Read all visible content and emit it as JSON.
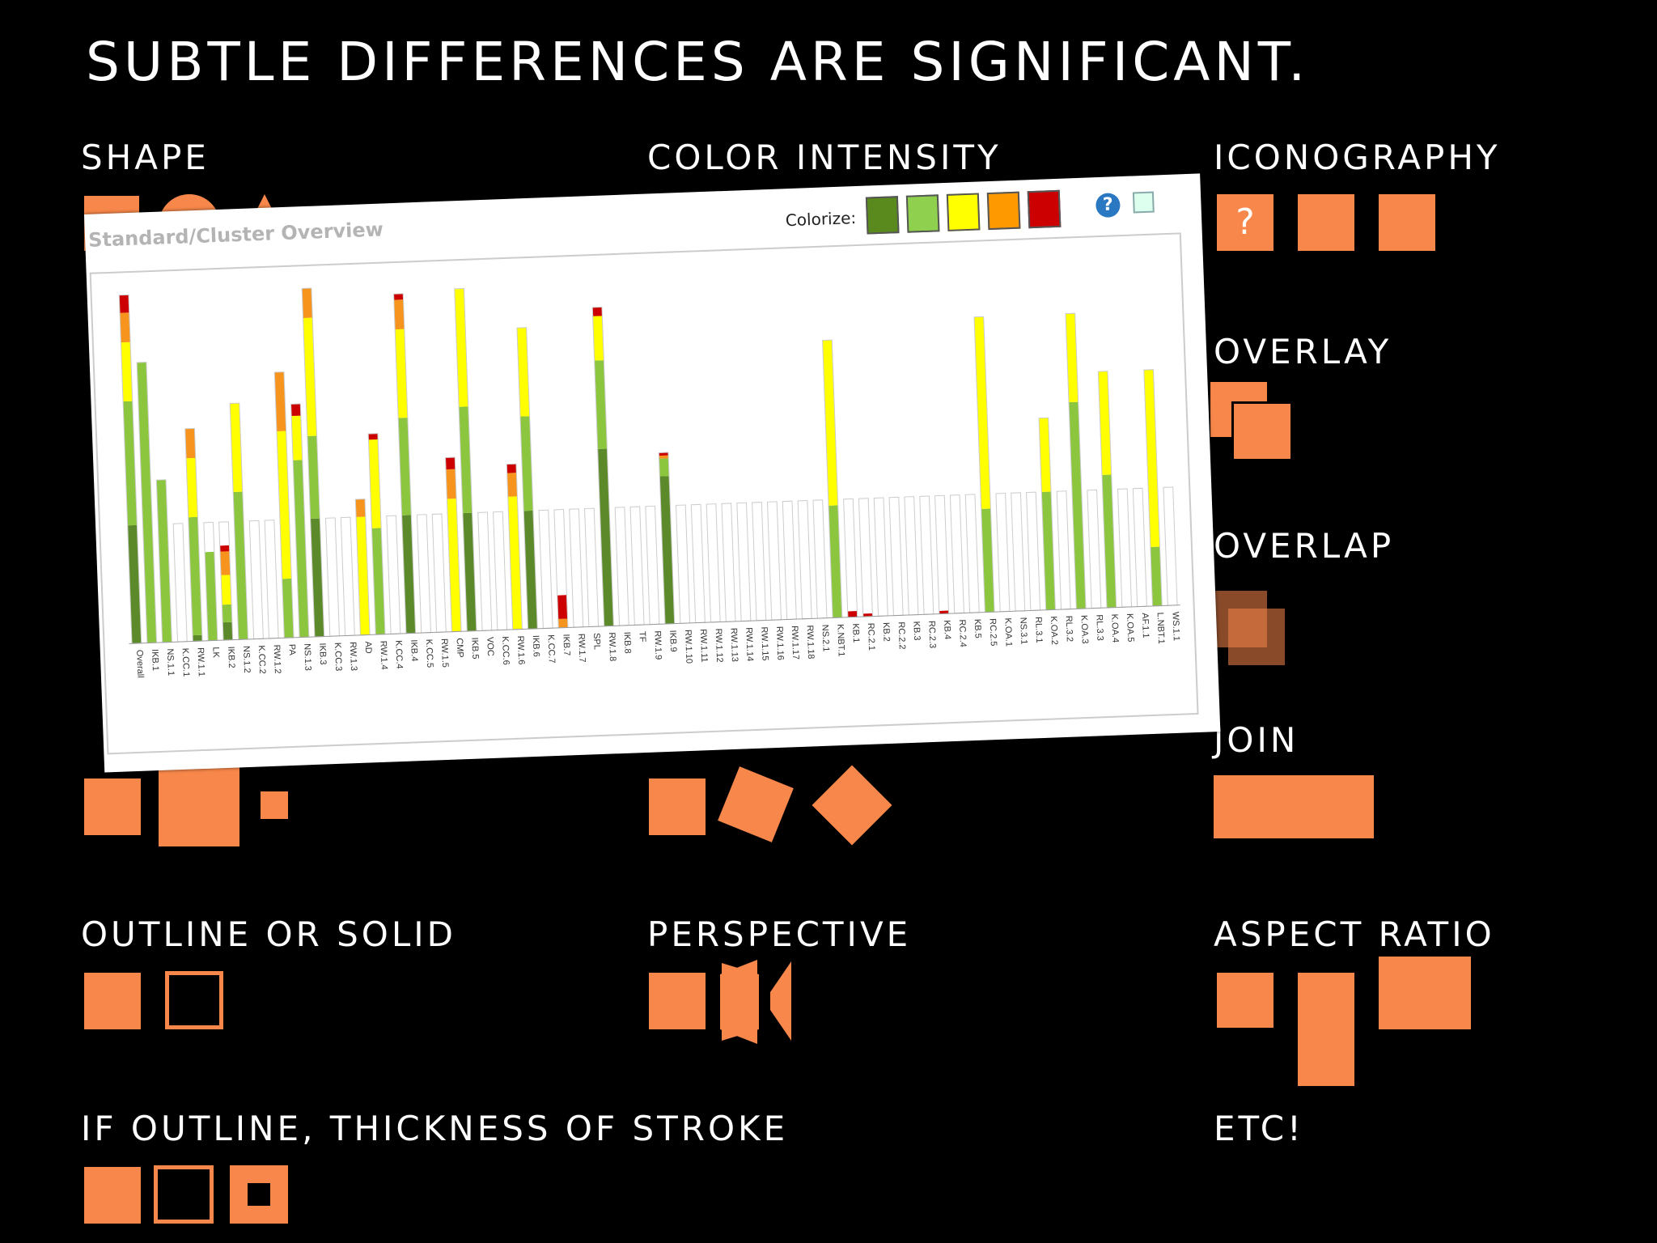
{
  "slide": {
    "title": "SUBTLE DIFFERENCES ARE SIGNIFICANT.",
    "accent_color": "#f7874a",
    "labels": {
      "shape": "SHAPE",
      "color_intensity": "COLOR INTENSITY",
      "iconography": "ICONOGRAPHY",
      "overlay": "OVERLAY",
      "overlap": "OVERLAP",
      "join": "JOIN",
      "outline_or_solid": "OUTLINE OR SOLID",
      "perspective": "PERSPECTIVE",
      "aspect_ratio": "ASPECT RATIO",
      "stroke_thickness": "IF OUTLINE, THICKNESS OF STROKE",
      "etc": "ETC!"
    },
    "iconography_glyph": "?"
  },
  "screenshot": {
    "title": "Standard/Cluster Overview",
    "colorize_label": "Colorize:",
    "colorize_swatches": [
      "#5a8a1e",
      "#8fd14f",
      "#ffff00",
      "#ff9900",
      "#cc0000"
    ],
    "help_icon": "?",
    "chart_data": {
      "type": "bar",
      "stacked": true,
      "colors": {
        "dark_green": "#5c8a2a",
        "green": "#8cc63f",
        "yellow": "#ffff00",
        "orange": "#f7941d",
        "red": "#cc0000"
      },
      "categories": [
        "Overall",
        "IKB.1",
        "NS.1.1",
        "K.CC.1",
        "RW.1.1",
        "LK",
        "IKB.2",
        "NS.1.2",
        "K.CC.2",
        "RW.1.2",
        "PA",
        "NS.1.3",
        "IKB.3",
        "K.CC.3",
        "RW.1.3",
        "AD",
        "RW.1.4",
        "K.CC.4",
        "IKB.4",
        "K.CC.5",
        "RW.1.5",
        "CMP",
        "IKB.5",
        "VOC",
        "K.CC.6",
        "RW.1.6",
        "IKB.6",
        "K.CC.7",
        "IKB.7",
        "RW.1.7",
        "SPL",
        "RW.1.8",
        "IKB.8",
        "TF",
        "RW.1.9",
        "IKB.9",
        "RW.1.10",
        "RW.1.11",
        "RW.1.12",
        "RW.1.13",
        "RW.1.14",
        "RW.1.15",
        "RW.1.16",
        "RW.1.17",
        "RW.1.18",
        "NS.2.1",
        "K.NBT.1",
        "KB.1",
        "RC.2.1",
        "KB.2",
        "RC.2.2",
        "KB.3",
        "RC.2.3",
        "KB.4",
        "RC.2.4",
        "KB.5",
        "RC.2.5",
        "K.OA.1",
        "NS.3.1",
        "RL.3.1",
        "K.OA.2",
        "RL.3.2",
        "K.OA.3",
        "RL.3.3",
        "K.OA.4",
        "K.OA.5",
        "AF.1.1",
        "L.NBT.1",
        "WS.1.1"
      ],
      "series": [
        {
          "values": [
            40,
            0,
            0,
            0,
            2,
            0,
            6,
            0,
            0,
            0,
            0,
            0,
            40,
            0,
            0,
            0,
            0,
            0,
            40,
            0,
            0,
            0,
            40,
            0,
            0,
            0,
            40,
            0,
            0,
            0,
            0,
            60,
            0,
            0,
            0,
            50,
            0,
            0,
            0,
            0,
            0,
            0,
            0,
            0,
            0,
            0,
            0,
            0,
            0,
            0,
            0,
            0,
            0,
            0,
            0,
            0,
            0,
            0,
            0,
            0,
            0,
            0,
            0,
            0,
            0,
            0,
            0,
            0,
            0
          ]
        },
        {
          "values": [
            42,
            95,
            55,
            0,
            40,
            30,
            6,
            50,
            0,
            0,
            20,
            60,
            28,
            0,
            0,
            0,
            36,
            0,
            33,
            0,
            0,
            0,
            36,
            0,
            0,
            0,
            32,
            0,
            0,
            0,
            0,
            30,
            0,
            0,
            0,
            6,
            0,
            0,
            0,
            0,
            0,
            0,
            0,
            0,
            0,
            0,
            38,
            0,
            0,
            0,
            0,
            0,
            0,
            0,
            0,
            0,
            35,
            0,
            0,
            0,
            40,
            0,
            70,
            0,
            45,
            0,
            0,
            20,
            0
          ]
        },
        {
          "values": [
            20,
            0,
            0,
            0,
            20,
            0,
            10,
            30,
            0,
            0,
            50,
            15,
            40,
            0,
            0,
            40,
            30,
            0,
            30,
            0,
            0,
            45,
            40,
            0,
            0,
            45,
            30,
            0,
            0,
            0,
            0,
            15,
            0,
            0,
            0,
            0,
            0,
            0,
            0,
            0,
            0,
            0,
            0,
            0,
            0,
            0,
            56,
            0,
            0,
            0,
            0,
            0,
            0,
            0,
            0,
            0,
            65,
            0,
            0,
            0,
            25,
            0,
            30,
            0,
            35,
            0,
            0,
            60,
            0
          ]
        },
        {
          "values": [
            10,
            0,
            0,
            0,
            10,
            0,
            8,
            0,
            0,
            0,
            20,
            0,
            10,
            0,
            0,
            6,
            0,
            0,
            10,
            0,
            0,
            10,
            0,
            0,
            0,
            8,
            0,
            0,
            3,
            0,
            0,
            0,
            0,
            0,
            0,
            1,
            0,
            0,
            0,
            0,
            0,
            0,
            0,
            0,
            0,
            0,
            0,
            0,
            0,
            0,
            0,
            0,
            0,
            0,
            0,
            0,
            0,
            0,
            0,
            0,
            0,
            0,
            0,
            0,
            0,
            0,
            0,
            0,
            0
          ]
        },
        {
          "values": [
            6,
            0,
            0,
            0,
            0,
            0,
            2,
            0,
            0,
            0,
            0,
            4,
            0,
            0,
            0,
            0,
            2,
            0,
            2,
            0,
            0,
            4,
            0,
            0,
            0,
            3,
            0,
            0,
            8,
            0,
            0,
            3,
            0,
            0,
            0,
            1,
            0,
            0,
            0,
            0,
            0,
            0,
            0,
            0,
            0,
            0,
            0,
            2,
            1,
            0,
            0,
            0,
            0,
            1,
            0,
            0,
            0,
            0,
            0,
            0,
            0,
            0,
            0,
            0,
            0,
            0,
            0,
            0,
            0
          ]
        }
      ]
    }
  }
}
